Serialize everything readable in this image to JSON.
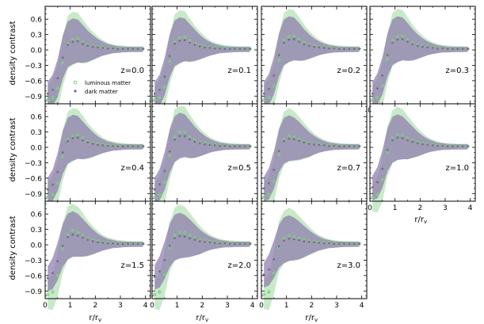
{
  "figure": {
    "ylabel": "density contrast",
    "xlabel": "r/r",
    "xlabel_sub": "v",
    "legend": {
      "luminous": "luminous matter",
      "dark": "dark matter"
    }
  },
  "colors": {
    "luminous": "#7fcf7f",
    "luminous_band": "#b5e3b5",
    "dark": "#8f6fb0",
    "dark_band": "#8c76ad",
    "axis": "#000000"
  },
  "chart_data": {
    "type": "scatter",
    "xlim": [
      0,
      4.2
    ],
    "ylim": [
      -1.05,
      0.85
    ],
    "xticks": [
      0,
      1,
      2,
      3,
      4
    ],
    "yticks": [
      0.6,
      0.3,
      0.0,
      -0.3,
      -0.6,
      -0.9
    ],
    "ytick_labels": [
      "0.6",
      "0.3",
      "0.0",
      "−0.3",
      "−0.6",
      "−0.9"
    ],
    "r": [
      0.1,
      0.3,
      0.5,
      0.7,
      0.9,
      1.1,
      1.3,
      1.5,
      1.7,
      1.9,
      2.1,
      2.3,
      2.5,
      2.7,
      2.9,
      3.1,
      3.3,
      3.5,
      3.7,
      3.9
    ],
    "panels": [
      {
        "label": "z=0.0",
        "luminous": [
          -0.97,
          -0.93,
          -0.75,
          -0.25,
          0.12,
          0.2,
          0.22,
          0.15,
          0.1,
          0.08,
          0.06,
          0.05,
          0.04,
          0.03,
          0.03,
          0.03,
          0.02,
          0.02,
          0.02,
          0.02
        ],
        "dark": [
          -0.85,
          -0.78,
          -0.55,
          -0.15,
          0.1,
          0.16,
          0.17,
          0.12,
          0.08,
          0.06,
          0.05,
          0.04,
          0.03,
          0.03,
          0.02,
          0.02,
          0.02,
          0.02,
          0.02,
          0.02
        ]
      },
      {
        "label": "z=0.1",
        "luminous": [
          -0.97,
          -0.93,
          -0.72,
          -0.22,
          0.15,
          0.23,
          0.25,
          0.18,
          0.12,
          0.09,
          0.07,
          0.05,
          0.04,
          0.04,
          0.03,
          0.03,
          0.02,
          0.02,
          0.02,
          0.02
        ],
        "dark": [
          -0.85,
          -0.78,
          -0.52,
          -0.12,
          0.12,
          0.18,
          0.19,
          0.14,
          0.1,
          0.07,
          0.05,
          0.04,
          0.03,
          0.03,
          0.02,
          0.02,
          0.02,
          0.02,
          0.02,
          0.02
        ]
      },
      {
        "label": "z=0.2",
        "luminous": [
          -0.97,
          -0.92,
          -0.7,
          -0.2,
          0.18,
          0.26,
          0.27,
          0.2,
          0.14,
          0.1,
          0.08,
          0.06,
          0.05,
          0.04,
          0.03,
          0.03,
          0.03,
          0.02,
          0.02,
          0.02
        ],
        "dark": [
          -0.85,
          -0.76,
          -0.5,
          -0.1,
          0.14,
          0.2,
          0.21,
          0.16,
          0.11,
          0.08,
          0.06,
          0.05,
          0.04,
          0.03,
          0.03,
          0.02,
          0.02,
          0.02,
          0.02,
          0.02
        ]
      },
      {
        "label": "z=0.3",
        "luminous": [
          -0.97,
          -0.92,
          -0.7,
          -0.18,
          0.18,
          0.26,
          0.27,
          0.2,
          0.14,
          0.1,
          0.08,
          0.06,
          0.05,
          0.04,
          0.03,
          0.03,
          0.03,
          0.02,
          0.02,
          0.02
        ],
        "dark": [
          -0.85,
          -0.75,
          -0.5,
          -0.1,
          0.14,
          0.2,
          0.21,
          0.16,
          0.11,
          0.08,
          0.06,
          0.05,
          0.04,
          0.03,
          0.03,
          0.02,
          0.02,
          0.02,
          0.02,
          0.02
        ]
      },
      {
        "label": "z=0.4",
        "luminous": [
          -0.97,
          -0.92,
          -0.7,
          -0.18,
          0.15,
          0.22,
          0.24,
          0.18,
          0.12,
          0.09,
          0.07,
          0.05,
          0.04,
          0.04,
          0.03,
          0.03,
          0.02,
          0.02,
          0.02,
          0.02
        ],
        "dark": [
          -0.82,
          -0.73,
          -0.48,
          -0.1,
          0.12,
          0.18,
          0.19,
          0.14,
          0.1,
          0.07,
          0.05,
          0.04,
          0.03,
          0.03,
          0.02,
          0.02,
          0.02,
          0.02,
          0.02,
          0.02
        ]
      },
      {
        "label": "z=0.5",
        "luminous": [
          -0.97,
          -0.92,
          -0.68,
          -0.16,
          0.2,
          0.3,
          0.3,
          0.2,
          0.14,
          0.1,
          0.08,
          0.06,
          0.05,
          0.04,
          0.03,
          0.03,
          0.03,
          0.02,
          0.02,
          0.02
        ],
        "dark": [
          -0.82,
          -0.72,
          -0.46,
          -0.08,
          0.15,
          0.22,
          0.22,
          0.16,
          0.11,
          0.08,
          0.06,
          0.05,
          0.04,
          0.03,
          0.03,
          0.02,
          0.02,
          0.02,
          0.02,
          0.02
        ]
      },
      {
        "label": "z=0.7",
        "luminous": [
          -0.97,
          -0.92,
          -0.66,
          -0.14,
          0.15,
          0.22,
          0.2,
          0.16,
          0.12,
          0.09,
          0.07,
          0.06,
          0.05,
          0.04,
          0.03,
          0.03,
          0.03,
          0.02,
          0.02,
          0.02
        ],
        "dark": [
          -0.8,
          -0.7,
          -0.44,
          -0.07,
          0.12,
          0.17,
          0.16,
          0.13,
          0.1,
          0.07,
          0.06,
          0.05,
          0.04,
          0.03,
          0.03,
          0.02,
          0.02,
          0.02,
          0.02,
          0.02
        ]
      },
      {
        "label": "z=1.0",
        "luminous": [
          -0.97,
          -0.92,
          -0.64,
          -0.1,
          0.18,
          0.25,
          0.24,
          0.18,
          0.14,
          0.1,
          0.08,
          0.06,
          0.05,
          0.04,
          0.03,
          0.03,
          0.03,
          0.02,
          0.02,
          0.02
        ],
        "dark": [
          -0.78,
          -0.68,
          -0.42,
          -0.05,
          0.14,
          0.19,
          0.18,
          0.14,
          0.11,
          0.08,
          0.06,
          0.05,
          0.04,
          0.03,
          0.03,
          0.02,
          0.02,
          0.02,
          0.02,
          0.02
        ]
      },
      {
        "label": "z=1.5",
        "luminous": [
          -0.97,
          -0.92,
          -0.6,
          -0.08,
          0.2,
          0.28,
          0.24,
          0.18,
          0.12,
          0.09,
          0.07,
          0.05,
          0.04,
          0.04,
          0.03,
          0.03,
          0.02,
          0.02,
          0.02,
          0.02
        ],
        "dark": [
          -0.65,
          -0.55,
          -0.32,
          -0.02,
          0.15,
          0.2,
          0.18,
          0.14,
          0.1,
          0.07,
          0.05,
          0.04,
          0.03,
          0.03,
          0.02,
          0.02,
          0.02,
          0.02,
          0.02,
          0.02
        ]
      },
      {
        "label": "z=2.0",
        "luminous": [
          -0.97,
          -0.92,
          -0.58,
          -0.06,
          0.18,
          0.24,
          0.24,
          0.18,
          0.14,
          0.1,
          0.08,
          0.06,
          0.05,
          0.04,
          0.03,
          0.03,
          0.03,
          0.02,
          0.02,
          0.02
        ],
        "dark": [
          -0.62,
          -0.52,
          -0.3,
          -0.02,
          0.13,
          0.17,
          0.16,
          0.13,
          0.1,
          0.07,
          0.06,
          0.05,
          0.04,
          0.03,
          0.03,
          0.02,
          0.02,
          0.02,
          0.02,
          0.02
        ]
      },
      {
        "label": "z=3.0",
        "luminous": [
          -0.97,
          -0.92,
          -0.55,
          -0.05,
          0.12,
          0.18,
          0.16,
          0.12,
          0.1,
          0.08,
          0.06,
          0.05,
          0.04,
          0.03,
          0.03,
          0.02,
          0.02,
          0.02,
          0.02,
          0.02
        ],
        "dark": [
          -0.58,
          -0.48,
          -0.28,
          -0.03,
          0.08,
          0.12,
          0.11,
          0.09,
          0.07,
          0.06,
          0.05,
          0.04,
          0.03,
          0.03,
          0.02,
          0.02,
          0.02,
          0.02,
          0.02,
          0.02
        ]
      }
    ]
  }
}
